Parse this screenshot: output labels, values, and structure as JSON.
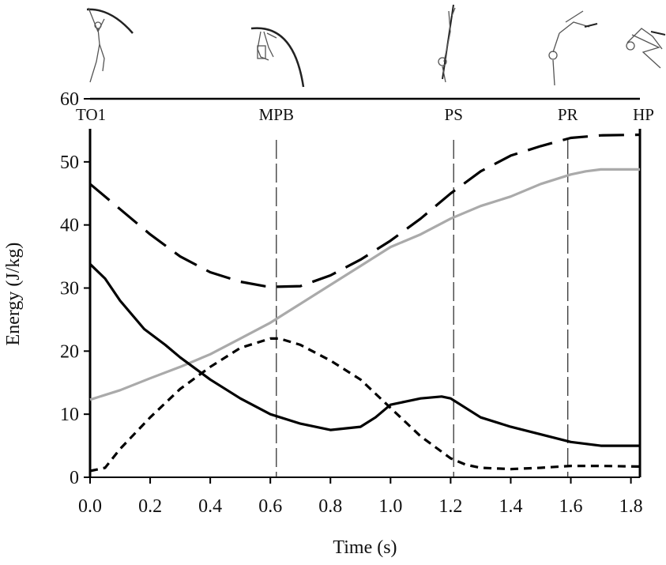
{
  "chart_data": {
    "type": "line",
    "title": "",
    "xlabel": "Time (s)",
    "ylabel": "Energy (J/kg)",
    "xlim": [
      0,
      1.83
    ],
    "ylim": [
      0,
      60
    ],
    "xticks": [
      "0.0",
      "0.2",
      "0.4",
      "0.6",
      "0.8",
      "1.0",
      "1.2",
      "1.4",
      "1.6",
      "1.8"
    ],
    "yticks": [
      "0",
      "10",
      "20",
      "30",
      "40",
      "50",
      "60"
    ],
    "grid": false,
    "legend": "none",
    "events": [
      {
        "label": "TO1",
        "x": 0.0
      },
      {
        "label": "MPB",
        "x": 0.62
      },
      {
        "label": "PS",
        "x": 1.21
      },
      {
        "label": "PR",
        "x": 1.59
      },
      {
        "label": "HP",
        "x": 1.83
      }
    ],
    "series": [
      {
        "style": "long-dash",
        "color": "#000000",
        "x": [
          0.0,
          0.1,
          0.2,
          0.3,
          0.4,
          0.5,
          0.58,
          0.62,
          0.7,
          0.8,
          0.9,
          1.0,
          1.1,
          1.2,
          1.3,
          1.4,
          1.5,
          1.6,
          1.7,
          1.83
        ],
        "y": [
          46.5,
          42.5,
          38.5,
          35.0,
          32.5,
          31.0,
          30.3,
          30.2,
          30.3,
          32.0,
          34.5,
          37.5,
          41.0,
          45.0,
          48.5,
          51.0,
          52.5,
          53.8,
          54.2,
          54.3
        ]
      },
      {
        "style": "solid",
        "color": "#aaaaaa",
        "x": [
          0.0,
          0.1,
          0.2,
          0.3,
          0.4,
          0.5,
          0.6,
          0.7,
          0.8,
          0.9,
          1.0,
          1.1,
          1.2,
          1.3,
          1.4,
          1.5,
          1.6,
          1.65,
          1.7,
          1.83
        ],
        "y": [
          12.3,
          13.8,
          15.7,
          17.5,
          19.5,
          22.0,
          24.5,
          27.5,
          30.5,
          33.5,
          36.5,
          38.5,
          41.0,
          43.0,
          44.5,
          46.5,
          48.0,
          48.5,
          48.8,
          48.8
        ]
      },
      {
        "style": "solid",
        "color": "#000000",
        "x": [
          0.0,
          0.05,
          0.1,
          0.18,
          0.25,
          0.3,
          0.4,
          0.5,
          0.6,
          0.7,
          0.8,
          0.9,
          0.95,
          1.0,
          1.05,
          1.1,
          1.17,
          1.2,
          1.25,
          1.3,
          1.4,
          1.5,
          1.6,
          1.7,
          1.83
        ],
        "y": [
          33.8,
          31.5,
          28.0,
          23.5,
          21.0,
          19.0,
          15.5,
          12.5,
          10.0,
          8.5,
          7.5,
          8.0,
          9.5,
          11.5,
          12.0,
          12.5,
          12.8,
          12.5,
          11.0,
          9.5,
          8.0,
          6.8,
          5.6,
          5.0,
          5.0
        ]
      },
      {
        "style": "short-dash",
        "color": "#000000",
        "x": [
          0.0,
          0.05,
          0.1,
          0.2,
          0.3,
          0.4,
          0.5,
          0.6,
          0.63,
          0.7,
          0.8,
          0.9,
          1.0,
          1.1,
          1.2,
          1.25,
          1.3,
          1.4,
          1.5,
          1.6,
          1.7,
          1.83
        ],
        "y": [
          1.0,
          1.5,
          4.5,
          9.5,
          14.0,
          17.5,
          20.5,
          22.0,
          22.0,
          21.0,
          18.5,
          15.5,
          11.0,
          6.5,
          3.0,
          2.0,
          1.5,
          1.3,
          1.5,
          1.8,
          1.8,
          1.7
        ]
      }
    ]
  }
}
